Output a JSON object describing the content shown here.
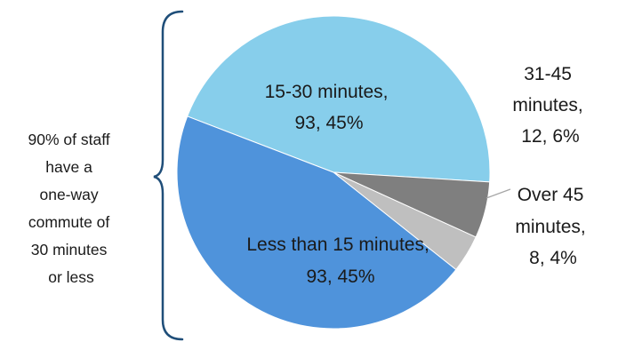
{
  "chart_data": {
    "type": "pie",
    "title": "",
    "slices": [
      {
        "category": "15-30 minutes",
        "count": 93,
        "percent": "45%",
        "color": "#87CEEB"
      },
      {
        "category": "31-45 minutes",
        "count": 12,
        "percent": "6%",
        "color": "#7F7F7F"
      },
      {
        "category": "Over 45 minutes",
        "count": 8,
        "percent": "4%",
        "color": "#BFBFBF"
      },
      {
        "category": "Less than 15 minutes",
        "count": 93,
        "percent": "45%",
        "color": "#4F93DB"
      }
    ],
    "labels": {
      "s0": [
        "15-30 minutes,",
        "93, 45%"
      ],
      "s1": [
        "31-45",
        "minutes,",
        "12, 6%"
      ],
      "s2": [
        "Over 45",
        "minutes,",
        "8, 4%"
      ],
      "s3": [
        "Less than 15 minutes,",
        "93, 45%"
      ]
    },
    "annotation": {
      "lines": [
        "90% of staff",
        "have a",
        "one-way",
        "commute of",
        "30 minutes",
        "or less"
      ],
      "bracket_color": "#1F4E79"
    }
  }
}
